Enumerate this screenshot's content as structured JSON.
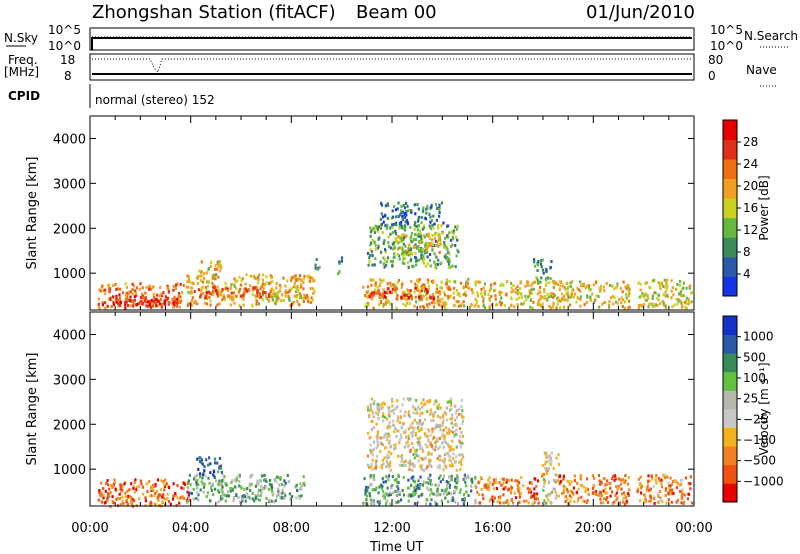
{
  "header": {
    "station": "Zhongshan Station (fitACF)",
    "beam": "Beam 00",
    "date": "01/Jun/2010"
  },
  "top_panels": {
    "nsky_label": "N.Sky",
    "nsky_ticks": [
      "10^5",
      "10^0"
    ],
    "nsearch_label": "N.Search",
    "nsearch_ticks": [
      "10^5",
      "10^0"
    ],
    "freq_label": "Freq.",
    "freq_unit": "[MHz]",
    "freq_ticks": [
      "18",
      "8"
    ],
    "nave_label": "Nave",
    "nave_ticks": [
      "80",
      "0"
    ],
    "cpid_label": "CPID",
    "cpid_value": "normal (stereo) 152"
  },
  "colors": {
    "power": [
      "#1432e6",
      "#2a5aa8",
      "#3a8a5a",
      "#66b843",
      "#c8d223",
      "#f2a020",
      "#f07010",
      "#e03018",
      "#e60000"
    ],
    "velocity": [
      "#e60000",
      "#f05010",
      "#f08020",
      "#f5b020",
      "#c8c8c8",
      "#b8b8b0",
      "#66c040",
      "#3a8a5a",
      "#2a5aa8",
      "#1432c8"
    ]
  },
  "chart_data": [
    {
      "type": "heatmap",
      "name": "Power",
      "ylabel": "Slant Range [km]",
      "y_ticks": [
        "1000",
        "2000",
        "3000",
        "4000"
      ],
      "ylim": [
        180,
        4500
      ],
      "xlim": [
        "00:00",
        "24:00"
      ],
      "colorbar_label": "Power [dB]",
      "colorbar_ticks": [
        "4",
        "8",
        "12",
        "16",
        "20",
        "24",
        "28"
      ],
      "colorbar_range": [
        0,
        32
      ],
      "patches": [
        {
          "t": [
            0.3,
            3.7
          ],
          "r": [
            250,
            800
          ],
          "level": 0.72
        },
        {
          "t": [
            0.4,
            3.5
          ],
          "r": [
            300,
            520
          ],
          "level": 0.9
        },
        {
          "t": [
            3.8,
            8.9
          ],
          "r": [
            300,
            1000
          ],
          "level": 0.6
        },
        {
          "t": [
            4.0,
            7.2
          ],
          "r": [
            480,
            720
          ],
          "level": 0.75
        },
        {
          "t": [
            4.3,
            5.2
          ],
          "r": [
            900,
            1300
          ],
          "level": 0.55
        },
        {
          "t": [
            8.9,
            9.1
          ],
          "r": [
            1050,
            1400
          ],
          "level": 0.25
        },
        {
          "t": [
            9.8,
            10.0
          ],
          "r": [
            1000,
            1400
          ],
          "level": 0.3
        },
        {
          "t": [
            10.8,
            15.3
          ],
          "r": [
            250,
            900
          ],
          "level": 0.6
        },
        {
          "t": [
            10.9,
            13.8
          ],
          "r": [
            450,
            700
          ],
          "level": 0.8
        },
        {
          "t": [
            11.0,
            14.6
          ],
          "r": [
            1150,
            2100
          ],
          "level": 0.35
        },
        {
          "t": [
            12.0,
            14.0
          ],
          "r": [
            1450,
            1900
          ],
          "level": 0.5
        },
        {
          "t": [
            11.5,
            14.0
          ],
          "r": [
            2100,
            2600
          ],
          "level": 0.2
        },
        {
          "t": [
            15.3,
            21.4
          ],
          "r": [
            250,
            850
          ],
          "level": 0.55
        },
        {
          "t": [
            17.6,
            18.3
          ],
          "r": [
            850,
            1350
          ],
          "level": 0.3
        },
        {
          "t": [
            21.7,
            23.9
          ],
          "r": [
            250,
            900
          ],
          "level": 0.5
        }
      ]
    },
    {
      "type": "heatmap",
      "name": "Velocity",
      "ylabel": "Slant Range [km]",
      "y_ticks": [
        "1000",
        "2000",
        "3000",
        "4000"
      ],
      "ylim": [
        180,
        4500
      ],
      "xlim": [
        "00:00",
        "24:00"
      ],
      "colorbar_label": "Velocity [m s⁻¹]",
      "colorbar_ticks": [
        "-1000",
        "-500",
        "-100",
        "-25",
        "25",
        "100",
        "500",
        "1000"
      ],
      "patches": [
        {
          "t": [
            0.3,
            3.9
          ],
          "r": [
            200,
            800
          ],
          "level": 0.2
        },
        {
          "t": [
            3.8,
            8.6
          ],
          "r": [
            300,
            900
          ],
          "level": 0.65
        },
        {
          "t": [
            4.2,
            5.2
          ],
          "r": [
            900,
            1300
          ],
          "level": 0.85
        },
        {
          "t": [
            10.8,
            15.3
          ],
          "r": [
            250,
            900
          ],
          "level": 0.7
        },
        {
          "t": [
            11.0,
            14.8
          ],
          "r": [
            1000,
            2600
          ],
          "level": 0.45
        },
        {
          "t": [
            15.3,
            17.8
          ],
          "r": [
            250,
            850
          ],
          "level": 0.22
        },
        {
          "t": [
            17.9,
            18.6
          ],
          "r": [
            250,
            1400
          ],
          "level": 0.45
        },
        {
          "t": [
            18.6,
            21.4
          ],
          "r": [
            250,
            900
          ],
          "level": 0.22
        },
        {
          "t": [
            21.7,
            23.9
          ],
          "r": [
            250,
            900
          ],
          "level": 0.25
        }
      ]
    }
  ],
  "x_axis": {
    "label": "Time UT",
    "ticks": [
      "00:00",
      "04:00",
      "08:00",
      "12:00",
      "16:00",
      "20:00",
      "00:00"
    ]
  }
}
